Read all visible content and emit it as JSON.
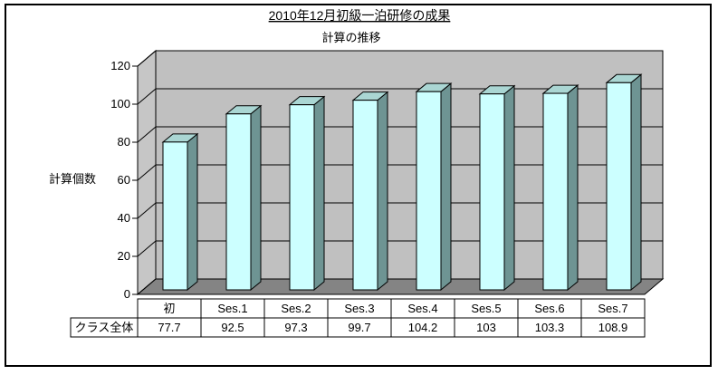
{
  "window": {
    "background": "#FFFFFF",
    "border_color": "#000000"
  },
  "chart_data": {
    "type": "bar",
    "style": "3d-column-with-data-table",
    "title": "2010年12月初級一泊研修の成果",
    "title_underlined": true,
    "subtitle": "計算の推移",
    "ylabel": "計算個数",
    "xlabel": "",
    "ylim": [
      0,
      120
    ],
    "ytick_step": 20,
    "yticks": [
      "0",
      "20",
      "40",
      "60",
      "80",
      "100",
      "120"
    ],
    "grid": true,
    "legend_position": "none",
    "categories": [
      "初",
      "Ses.1",
      "Ses.2",
      "Ses.3",
      "Ses.4",
      "Ses.5",
      "Ses.6",
      "Ses.7"
    ],
    "series": [
      {
        "name": "クラス全体",
        "values": [
          77.7,
          92.5,
          97.3,
          99.7,
          104.2,
          103,
          103.3,
          108.9
        ],
        "display_values": [
          "77.7",
          "92.5",
          "97.3",
          "99.7",
          "104.2",
          "103",
          "103.3",
          "108.9"
        ]
      }
    ],
    "colors": {
      "bar_front": "#CCFFFF",
      "bar_top": "#AAD6D3",
      "bar_side": "#6E9493",
      "bar_outline": "#000000",
      "back_wall": "#C0C0C0",
      "side_wall": "#C6C6C6",
      "floor": "#848484",
      "gridline": "#000000",
      "table_bg": "#FFFFFF",
      "table_border": "#000000"
    }
  }
}
